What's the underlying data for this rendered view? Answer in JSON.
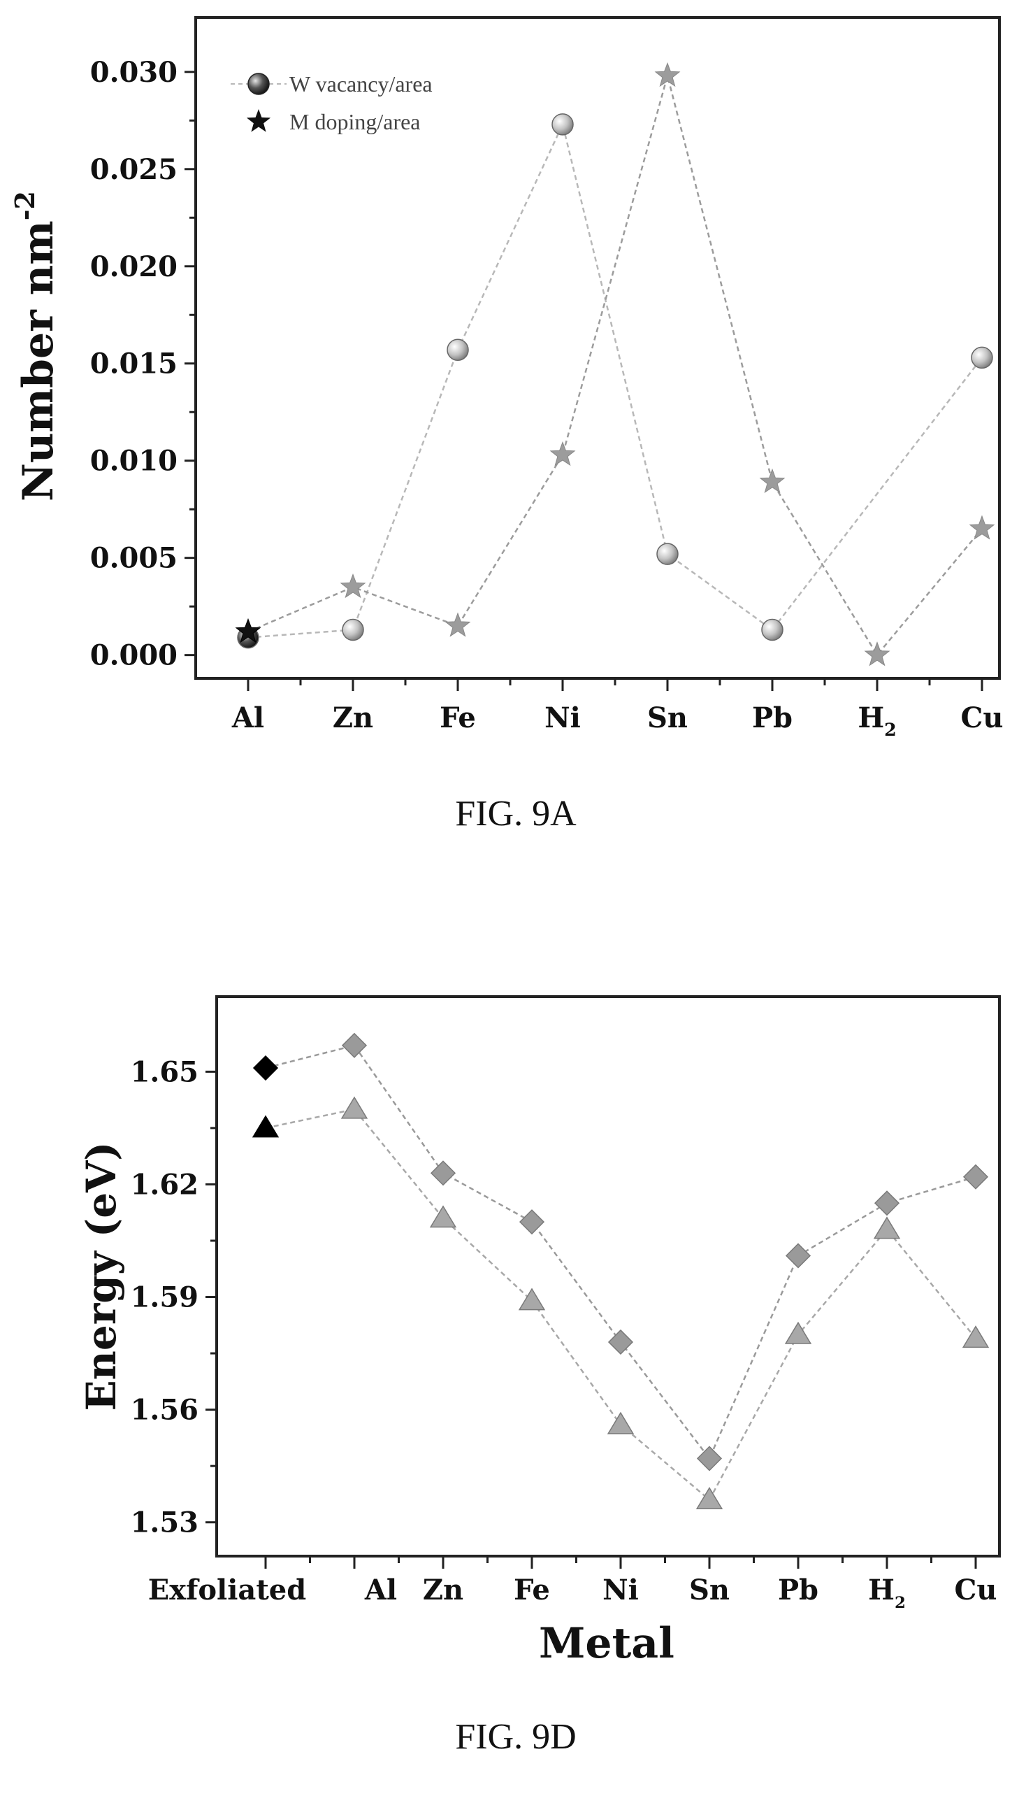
{
  "chart_data": [
    {
      "type": "line",
      "caption": "FIG. 9A",
      "categories": [
        "Al",
        "Zn",
        "Fe",
        "Ni",
        "Sn",
        "Pb",
        "H",
        "Cu"
      ],
      "categories_sub": [
        "",
        "",
        "",
        "",
        "",
        "",
        "2",
        ""
      ],
      "ylabel": "Number nm",
      "ylabel_sup": "-2",
      "xlabel": "",
      "ylim": [
        -0.0012,
        0.0328
      ],
      "yticks": [
        "0.000",
        "0.005",
        "0.010",
        "0.015",
        "0.020",
        "0.025",
        "0.030"
      ],
      "legend_position": "top-left",
      "series": [
        {
          "name": "W vacancy/area",
          "marker": "circle",
          "color": "#b8b8b8",
          "values": [
            0.0009,
            0.0013,
            0.0157,
            0.0273,
            0.0052,
            0.0013,
            null,
            0.0153
          ]
        },
        {
          "name": "M doping/area",
          "marker": "star",
          "color": "#9c9c9c",
          "values": [
            0.0012,
            0.0035,
            0.0015,
            0.0103,
            0.0298,
            0.0089,
            0.0,
            0.0065
          ]
        }
      ]
    },
    {
      "type": "line",
      "caption": "FIG. 9D",
      "categories": [
        "Exfoliated",
        "Al",
        "Zn",
        "Fe",
        "Ni",
        "Sn",
        "Pb",
        "H",
        "Cu"
      ],
      "categories_sub": [
        "",
        "",
        "",
        "",
        "",
        "",
        "",
        "2",
        ""
      ],
      "xlabel": "Metal",
      "ylabel": "Energy (eV)",
      "ylim": [
        1.521,
        1.67
      ],
      "yticks": [
        "1.53",
        "1.56",
        "1.59",
        "1.62",
        "1.65"
      ],
      "series": [
        {
          "marker": "diamond",
          "color": "#9a9a9a",
          "first_point_color": "#000000",
          "values": [
            1.651,
            1.657,
            1.623,
            1.61,
            1.578,
            1.547,
            1.601,
            1.615,
            1.622
          ]
        },
        {
          "marker": "triangle",
          "color": "#a8a8a8",
          "first_point_color": "#000000",
          "values": [
            1.635,
            1.64,
            1.611,
            1.589,
            1.556,
            1.536,
            1.58,
            1.608,
            1.579
          ]
        }
      ]
    }
  ]
}
